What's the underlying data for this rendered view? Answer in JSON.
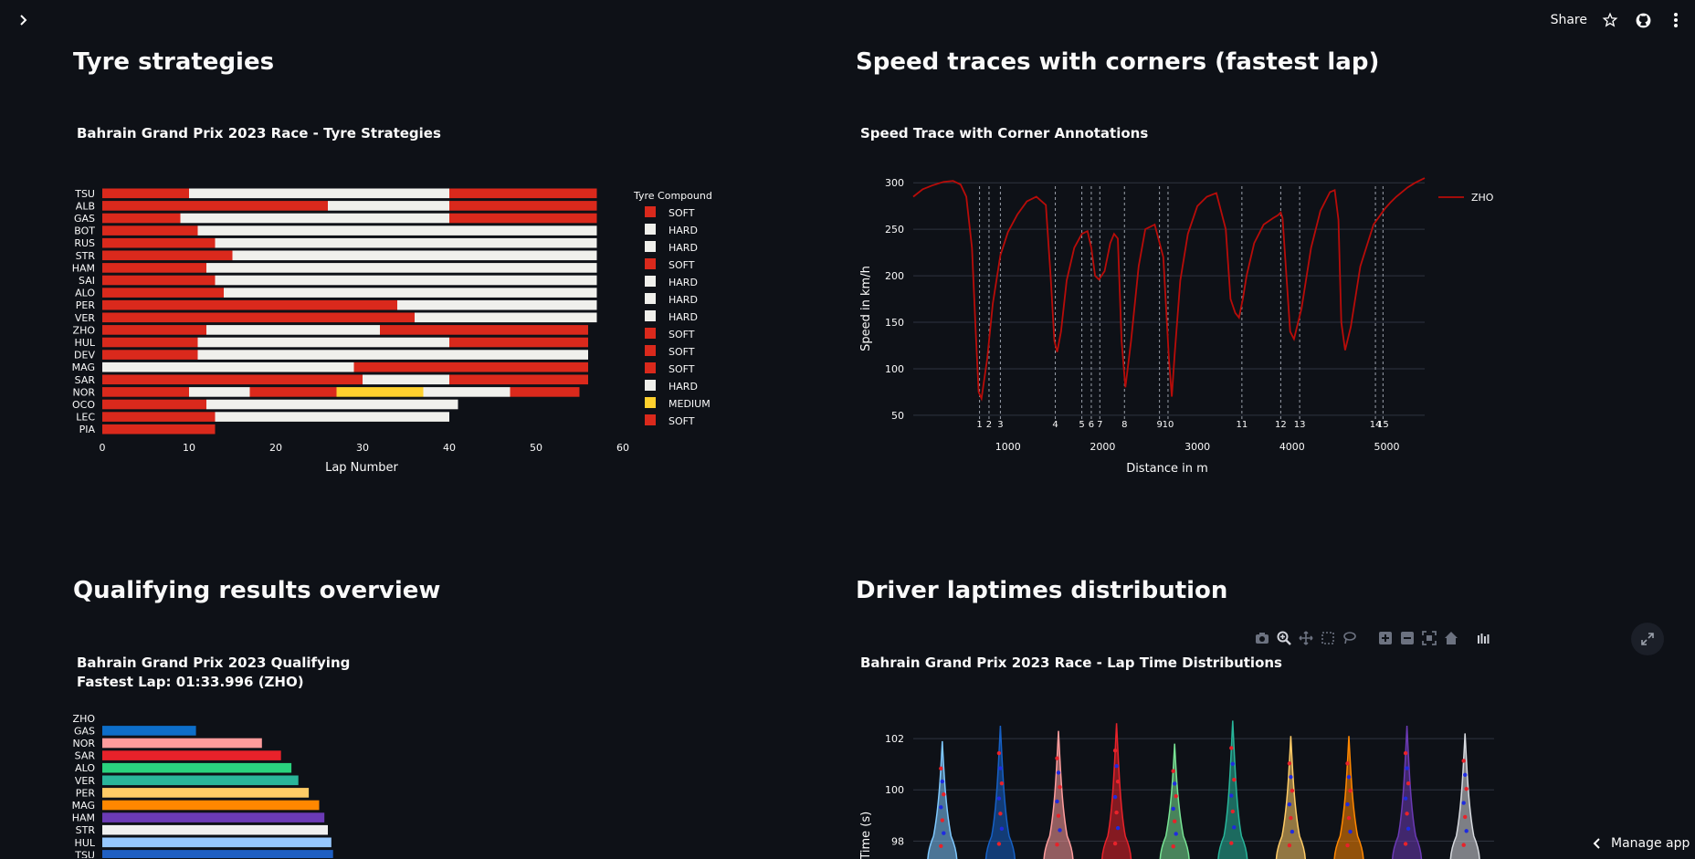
{
  "app": {
    "share_label": "Share",
    "manage_label": "Manage app",
    "icons": [
      "chevron-right-icon",
      "star-icon",
      "github-icon",
      "kebab-menu-icon",
      "expand-icon",
      "chevron-left-icon"
    ]
  },
  "sections": {
    "tyre": "Tyre strategies",
    "speed": "Speed traces with corners (fastest lap)",
    "quali": "Qualifying results overview",
    "laptimes": "Driver laptimes distribution"
  },
  "colors": {
    "soft": "#da291c",
    "hard": "#f0f0ec",
    "medium": "#ffd12e",
    "speed_line": "#b80c09",
    "background": "#0e1117"
  },
  "chart_data": [
    {
      "type": "bar",
      "orientation": "horizontal-stacked",
      "title": "Bahrain Grand Prix 2023 Race - Tyre Strategies",
      "xlabel": "Lap Number",
      "xlim": [
        0,
        60
      ],
      "xticks": [
        "0",
        "10",
        "20",
        "30",
        "40",
        "50",
        "60"
      ],
      "legend_title": "Tyre Compound",
      "legend": [
        "SOFT",
        "HARD",
        "HARD",
        "SOFT",
        "HARD",
        "HARD",
        "HARD",
        "SOFT",
        "SOFT",
        "SOFT",
        "HARD",
        "MEDIUM",
        "SOFT"
      ],
      "drivers": [
        {
          "name": "TSU",
          "stints": [
            {
              "c": "SOFT",
              "laps": 10
            },
            {
              "c": "HARD",
              "laps": 30
            },
            {
              "c": "SOFT",
              "laps": 17
            }
          ]
        },
        {
          "name": "ALB",
          "stints": [
            {
              "c": "SOFT",
              "laps": 26
            },
            {
              "c": "HARD",
              "laps": 14
            },
            {
              "c": "SOFT",
              "laps": 17
            }
          ]
        },
        {
          "name": "GAS",
          "stints": [
            {
              "c": "SOFT",
              "laps": 9
            },
            {
              "c": "HARD",
              "laps": 31
            },
            {
              "c": "SOFT",
              "laps": 17
            }
          ]
        },
        {
          "name": "BOT",
          "stints": [
            {
              "c": "SOFT",
              "laps": 11
            },
            {
              "c": "HARD",
              "laps": 46
            }
          ]
        },
        {
          "name": "RUS",
          "stints": [
            {
              "c": "SOFT",
              "laps": 13
            },
            {
              "c": "HARD",
              "laps": 44
            }
          ]
        },
        {
          "name": "STR",
          "stints": [
            {
              "c": "SOFT",
              "laps": 15
            },
            {
              "c": "HARD",
              "laps": 42
            }
          ]
        },
        {
          "name": "HAM",
          "stints": [
            {
              "c": "SOFT",
              "laps": 12
            },
            {
              "c": "HARD",
              "laps": 45
            }
          ]
        },
        {
          "name": "SAI",
          "stints": [
            {
              "c": "SOFT",
              "laps": 13
            },
            {
              "c": "HARD",
              "laps": 44
            }
          ]
        },
        {
          "name": "ALO",
          "stints": [
            {
              "c": "SOFT",
              "laps": 14
            },
            {
              "c": "HARD",
              "laps": 43
            }
          ]
        },
        {
          "name": "PER",
          "stints": [
            {
              "c": "SOFT",
              "laps": 34
            },
            {
              "c": "HARD",
              "laps": 23
            }
          ]
        },
        {
          "name": "VER",
          "stints": [
            {
              "c": "SOFT",
              "laps": 36
            },
            {
              "c": "HARD",
              "laps": 21
            }
          ]
        },
        {
          "name": "ZHO",
          "stints": [
            {
              "c": "SOFT",
              "laps": 12
            },
            {
              "c": "HARD",
              "laps": 20
            },
            {
              "c": "SOFT",
              "laps": 24
            }
          ]
        },
        {
          "name": "HUL",
          "stints": [
            {
              "c": "SOFT",
              "laps": 11
            },
            {
              "c": "HARD",
              "laps": 29
            },
            {
              "c": "SOFT",
              "laps": 16
            }
          ]
        },
        {
          "name": "DEV",
          "stints": [
            {
              "c": "SOFT",
              "laps": 11
            },
            {
              "c": "HARD",
              "laps": 45
            }
          ]
        },
        {
          "name": "MAG",
          "stints": [
            {
              "c": "HARD",
              "laps": 29
            },
            {
              "c": "SOFT",
              "laps": 27
            }
          ]
        },
        {
          "name": "SAR",
          "stints": [
            {
              "c": "SOFT",
              "laps": 30
            },
            {
              "c": "HARD",
              "laps": 10
            },
            {
              "c": "SOFT",
              "laps": 16
            }
          ]
        },
        {
          "name": "NOR",
          "stints": [
            {
              "c": "SOFT",
              "laps": 10
            },
            {
              "c": "HARD",
              "laps": 7
            },
            {
              "c": "SOFT",
              "laps": 10
            },
            {
              "c": "MEDIUM",
              "laps": 10
            },
            {
              "c": "HARD",
              "laps": 10
            },
            {
              "c": "SOFT",
              "laps": 8
            }
          ]
        },
        {
          "name": "OCO",
          "stints": [
            {
              "c": "SOFT",
              "laps": 12
            },
            {
              "c": "HARD",
              "laps": 29
            }
          ]
        },
        {
          "name": "LEC",
          "stints": [
            {
              "c": "SOFT",
              "laps": 13
            },
            {
              "c": "HARD",
              "laps": 27
            }
          ]
        },
        {
          "name": "PIA",
          "stints": [
            {
              "c": "SOFT",
              "laps": 13
            }
          ]
        }
      ]
    },
    {
      "type": "line",
      "title": "Speed Trace with Corner Annotations",
      "xlabel": "Distance in m",
      "ylabel": "Speed in km/h",
      "xlim": [
        0,
        5400
      ],
      "ylim": [
        45,
        310
      ],
      "xticks": [
        "1000",
        "2000",
        "3000",
        "4000",
        "5000"
      ],
      "yticks": [
        "50",
        "100",
        "150",
        "200",
        "250",
        "300"
      ],
      "grid": true,
      "legend_position": "top-right",
      "series": [
        {
          "name": "ZHO",
          "x": [
            0,
            100,
            200,
            320,
            420,
            500,
            560,
            620,
            660,
            690,
            720,
            780,
            840,
            920,
            1000,
            1100,
            1200,
            1300,
            1400,
            1450,
            1490,
            1520,
            1560,
            1620,
            1700,
            1780,
            1840,
            1880,
            1920,
            1960,
            2020,
            2080,
            2120,
            2160,
            2200,
            2240,
            2300,
            2380,
            2450,
            2550,
            2640,
            2700,
            2730,
            2760,
            2820,
            2900,
            3000,
            3100,
            3200,
            3300,
            3350,
            3400,
            3440,
            3480,
            3520,
            3600,
            3700,
            3800,
            3850,
            3880,
            3900,
            3940,
            3980,
            4020,
            4100,
            4200,
            4300,
            4400,
            4450,
            4490,
            4520,
            4560,
            4620,
            4720,
            4860,
            4980,
            5040,
            5100,
            5160,
            5220,
            5300,
            5400
          ],
          "y": [
            285,
            293,
            297,
            301,
            302,
            298,
            285,
            230,
            140,
            75,
            68,
            110,
            170,
            222,
            247,
            266,
            280,
            285,
            276,
            200,
            130,
            118,
            140,
            195,
            230,
            245,
            248,
            230,
            200,
            196,
            205,
            235,
            245,
            240,
            130,
            80,
            130,
            210,
            250,
            255,
            220,
            110,
            70,
            115,
            195,
            245,
            275,
            285,
            289,
            250,
            175,
            160,
            155,
            175,
            200,
            235,
            255,
            262,
            265,
            268,
            262,
            200,
            140,
            132,
            165,
            230,
            270,
            290,
            292,
            260,
            150,
            120,
            145,
            210,
            255,
            272,
            279,
            285,
            290,
            295,
            300,
            305
          ]
        }
      ],
      "corners": [
        {
          "label": "1",
          "x": 700
        },
        {
          "label": "2",
          "x": 800
        },
        {
          "label": "3",
          "x": 920
        },
        {
          "label": "4",
          "x": 1500
        },
        {
          "label": "5",
          "x": 1780
        },
        {
          "label": "6",
          "x": 1880
        },
        {
          "label": "7",
          "x": 1970
        },
        {
          "label": "8",
          "x": 2230
        },
        {
          "label": "9",
          "x": 2600
        },
        {
          "label": "10",
          "x": 2690
        },
        {
          "label": "11",
          "x": 3470
        },
        {
          "label": "12",
          "x": 3880
        },
        {
          "label": "13",
          "x": 4080
        },
        {
          "label": "14",
          "x": 4880
        },
        {
          "label": "15",
          "x": 4960
        }
      ]
    },
    {
      "type": "bar",
      "orientation": "horizontal",
      "title_line1": "Bahrain Grand Prix 2023 Qualifying",
      "title_line2": "Fastest Lap: 01:33.996 (ZHO)",
      "categories": [
        "ZHO",
        "GAS",
        "NOR",
        "SAR",
        "ALO",
        "VER",
        "PER",
        "MAG",
        "HAM",
        "STR",
        "HUL",
        "TSU"
      ],
      "values": [
        0.0,
        0.54,
        0.92,
        1.03,
        1.09,
        1.13,
        1.19,
        1.25,
        1.28,
        1.3,
        1.32,
        1.33
      ],
      "colors": [
        "#0b0c9b",
        "#0d6ec9",
        "#ff9c9c",
        "#e8222a",
        "#2ad27e",
        "#2ab59a",
        "#ffcc66",
        "#ff8700",
        "#6b3ab5",
        "#f0f0f0",
        "#96c8ff",
        "#1f5fc2"
      ]
    },
    {
      "type": "violin",
      "title": "Bahrain Grand Prix 2023 Race - Lap Time Distributions",
      "ylabel": "Lap Time (s)",
      "yticks": [
        "98",
        "100",
        "102"
      ],
      "ylim": [
        97.3,
        103
      ],
      "series": [
        {
          "color": "#7fc9ff",
          "top": 101.9
        },
        {
          "color": "#1660c4",
          "top": 102.5
        },
        {
          "color": "#ff9d9d",
          "top": 102.3
        },
        {
          "color": "#e8222a",
          "top": 102.6
        },
        {
          "color": "#78e394",
          "top": 101.8
        },
        {
          "color": "#28b59a",
          "top": 102.7
        },
        {
          "color": "#ffcc66",
          "top": 102.1
        },
        {
          "color": "#ff8700",
          "top": 102.1
        },
        {
          "color": "#6b3ab5",
          "top": 102.5
        },
        {
          "color": "#d8dbe0",
          "top": 102.2
        }
      ]
    }
  ]
}
